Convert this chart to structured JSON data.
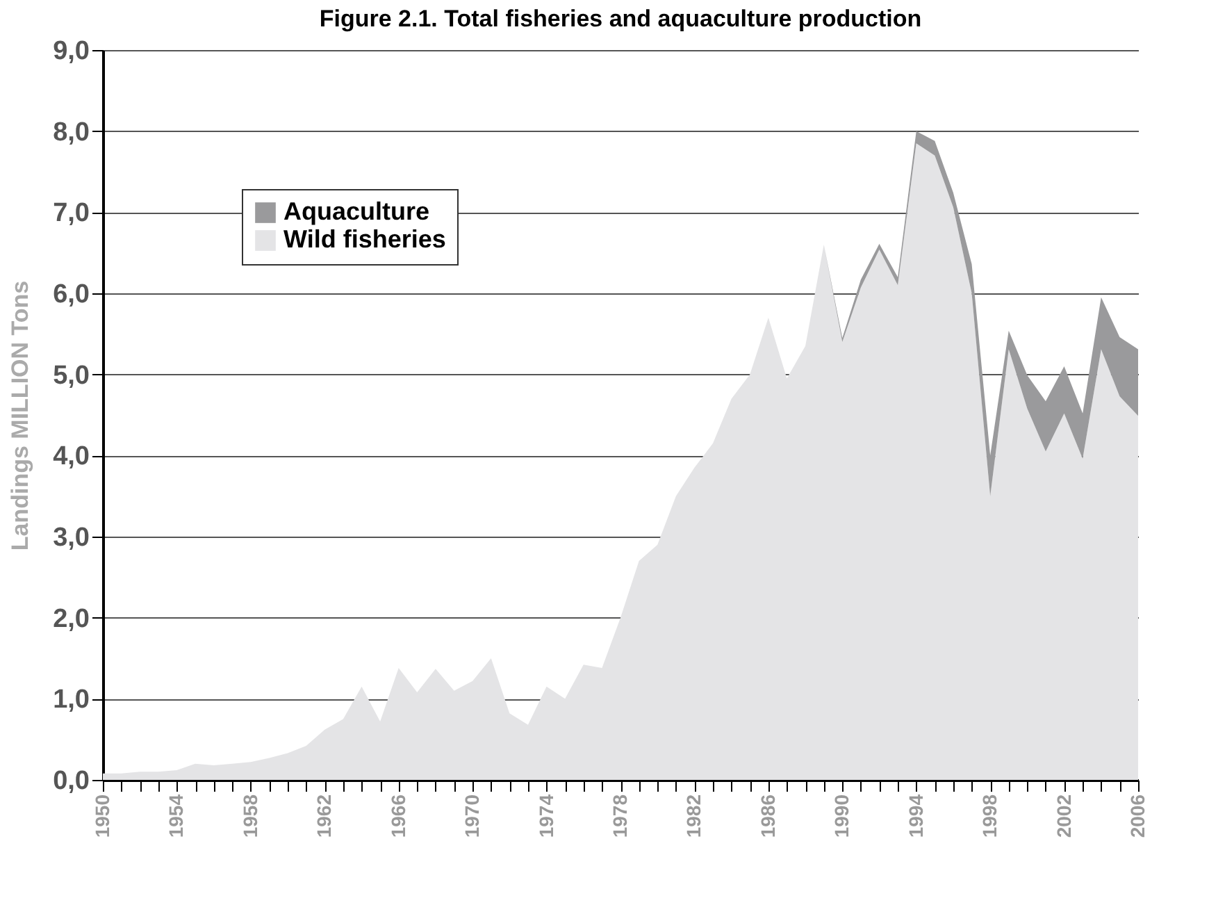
{
  "chart_data": {
    "type": "area",
    "title": "Figure 2.1. Total fisheries and aquaculture production",
    "ylabel": "Landings  MILLION  Tons",
    "x": [
      1950,
      1951,
      1952,
      1953,
      1954,
      1955,
      1956,
      1957,
      1958,
      1959,
      1960,
      1961,
      1962,
      1963,
      1964,
      1965,
      1966,
      1967,
      1968,
      1969,
      1970,
      1971,
      1972,
      1973,
      1974,
      1975,
      1976,
      1977,
      1978,
      1979,
      1980,
      1981,
      1982,
      1983,
      1984,
      1985,
      1986,
      1987,
      1988,
      1989,
      1990,
      1991,
      1992,
      1993,
      1994,
      1995,
      1996,
      1997,
      1998,
      1999,
      2000,
      2001,
      2002,
      2003,
      2004,
      2005,
      2006
    ],
    "stacked": true,
    "series": [
      {
        "name": "Wild fisheries",
        "color": "#e4e4e6",
        "values": [
          0.08,
          0.08,
          0.1,
          0.1,
          0.12,
          0.2,
          0.18,
          0.2,
          0.22,
          0.27,
          0.33,
          0.42,
          0.62,
          0.75,
          1.15,
          0.72,
          1.38,
          1.08,
          1.37,
          1.1,
          1.22,
          1.5,
          0.82,
          0.68,
          1.15,
          1.0,
          1.42,
          1.38,
          2.0,
          2.7,
          2.9,
          3.5,
          3.85,
          4.15,
          4.7,
          5.0,
          5.7,
          4.95,
          5.35,
          6.6,
          5.4,
          6.07,
          6.54,
          6.1,
          7.85,
          7.7,
          7.06,
          6.0,
          3.5,
          5.31,
          4.58,
          4.05,
          4.52,
          3.96,
          5.31,
          4.73,
          4.49
        ]
      },
      {
        "name": "Aquaculture",
        "color": "#9a9a9c",
        "values": [
          0,
          0,
          0,
          0,
          0,
          0,
          0,
          0,
          0,
          0,
          0,
          0,
          0,
          0,
          0,
          0,
          0,
          0,
          0,
          0,
          0,
          0,
          0,
          0,
          0,
          0,
          0,
          0,
          0,
          0,
          0,
          0,
          0,
          0,
          0,
          0,
          0,
          0,
          0,
          0,
          0.05,
          0.1,
          0.07,
          0.1,
          0.15,
          0.18,
          0.18,
          0.36,
          0.5,
          0.23,
          0.41,
          0.62,
          0.58,
          0.56,
          0.64,
          0.73,
          0.82
        ]
      }
    ],
    "xlim": [
      1950,
      2006
    ],
    "xticks": [
      1950,
      {
        "value": 1951,
        "label": null
      },
      {
        "value": 1952,
        "label": null
      },
      {
        "value": 1953,
        "label": null
      },
      1954,
      {
        "value": 1955,
        "label": null
      },
      {
        "value": 1956,
        "label": null
      },
      {
        "value": 1957,
        "label": null
      },
      1958,
      {
        "value": 1959,
        "label": null
      },
      {
        "value": 1960,
        "label": null
      },
      {
        "value": 1961,
        "label": null
      },
      1962,
      {
        "value": 1963,
        "label": null
      },
      {
        "value": 1964,
        "label": null
      },
      {
        "value": 1965,
        "label": null
      },
      1966,
      {
        "value": 1967,
        "label": null
      },
      {
        "value": 1968,
        "label": null
      },
      {
        "value": 1969,
        "label": null
      },
      1970,
      {
        "value": 1971,
        "label": null
      },
      {
        "value": 1972,
        "label": null
      },
      {
        "value": 1973,
        "label": null
      },
      1974,
      {
        "value": 1975,
        "label": null
      },
      {
        "value": 1976,
        "label": null
      },
      {
        "value": 1977,
        "label": null
      },
      1978,
      {
        "value": 1979,
        "label": null
      },
      {
        "value": 1980,
        "label": null
      },
      {
        "value": 1981,
        "label": null
      },
      1982,
      {
        "value": 1983,
        "label": null
      },
      {
        "value": 1984,
        "label": null
      },
      {
        "value": 1985,
        "label": null
      },
      1986,
      {
        "value": 1987,
        "label": null
      },
      {
        "value": 1988,
        "label": null
      },
      {
        "value": 1989,
        "label": null
      },
      1990,
      {
        "value": 1991,
        "label": null
      },
      {
        "value": 1992,
        "label": null
      },
      {
        "value": 1993,
        "label": null
      },
      1994,
      {
        "value": 1995,
        "label": null
      },
      {
        "value": 1996,
        "label": null
      },
      {
        "value": 1997,
        "label": null
      },
      1998,
      {
        "value": 1999,
        "label": null
      },
      {
        "value": 2000,
        "label": null
      },
      {
        "value": 2001,
        "label": null
      },
      2002,
      {
        "value": 2003,
        "label": null
      },
      {
        "value": 2004,
        "label": null
      },
      {
        "value": 2005,
        "label": null
      },
      2006
    ],
    "ylim": [
      0,
      9
    ],
    "yticks": [
      {
        "value": 0,
        "label": "0,0"
      },
      {
        "value": 1,
        "label": "1,0"
      },
      {
        "value": 2,
        "label": "2,0"
      },
      {
        "value": 3,
        "label": "3,0"
      },
      {
        "value": 4,
        "label": "4,0"
      },
      {
        "value": 5,
        "label": "5,0"
      },
      {
        "value": 6,
        "label": "6,0"
      },
      {
        "value": 7,
        "label": "7,0"
      },
      {
        "value": 8,
        "label": "8,0"
      },
      {
        "value": 9,
        "label": "9,0"
      }
    ],
    "grid": "y",
    "legend": "top left"
  }
}
